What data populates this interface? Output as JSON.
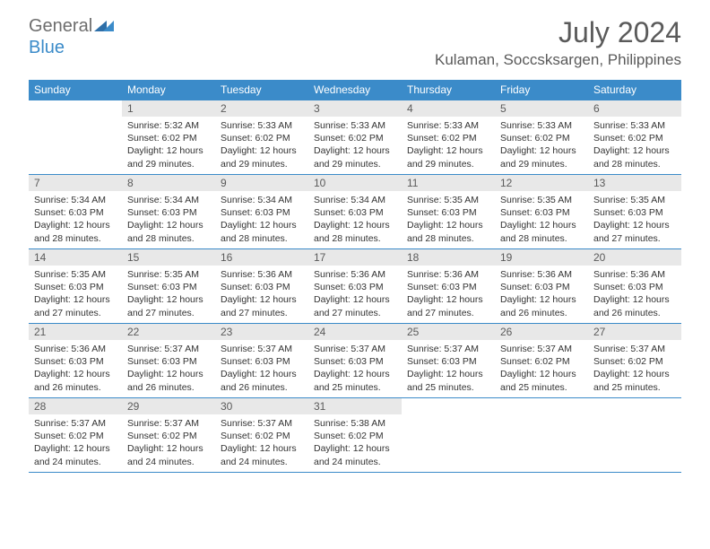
{
  "logo": {
    "text_general": "General",
    "text_blue": "Blue",
    "color_general": "#6d6d6d",
    "color_blue": "#3b8bc9"
  },
  "header": {
    "month_title": "July 2024",
    "location": "Kulaman, Soccsksargen, Philippines",
    "title_color": "#5a5a5a",
    "title_fontsize": 32,
    "location_fontsize": 17
  },
  "colors": {
    "header_bg": "#3b8bc9",
    "header_text": "#ffffff",
    "daynum_bg": "#e8e8e8",
    "daynum_text": "#5a5a5a",
    "border": "#3b8bc9",
    "body_text": "#333333",
    "background": "#ffffff"
  },
  "day_headers": [
    "Sunday",
    "Monday",
    "Tuesday",
    "Wednesday",
    "Thursday",
    "Friday",
    "Saturday"
  ],
  "weeks": [
    [
      {
        "num": "",
        "empty": true
      },
      {
        "num": "1",
        "sunrise": "Sunrise: 5:32 AM",
        "sunset": "Sunset: 6:02 PM",
        "daylight": "Daylight: 12 hours and 29 minutes."
      },
      {
        "num": "2",
        "sunrise": "Sunrise: 5:33 AM",
        "sunset": "Sunset: 6:02 PM",
        "daylight": "Daylight: 12 hours and 29 minutes."
      },
      {
        "num": "3",
        "sunrise": "Sunrise: 5:33 AM",
        "sunset": "Sunset: 6:02 PM",
        "daylight": "Daylight: 12 hours and 29 minutes."
      },
      {
        "num": "4",
        "sunrise": "Sunrise: 5:33 AM",
        "sunset": "Sunset: 6:02 PM",
        "daylight": "Daylight: 12 hours and 29 minutes."
      },
      {
        "num": "5",
        "sunrise": "Sunrise: 5:33 AM",
        "sunset": "Sunset: 6:02 PM",
        "daylight": "Daylight: 12 hours and 29 minutes."
      },
      {
        "num": "6",
        "sunrise": "Sunrise: 5:33 AM",
        "sunset": "Sunset: 6:02 PM",
        "daylight": "Daylight: 12 hours and 28 minutes."
      }
    ],
    [
      {
        "num": "7",
        "sunrise": "Sunrise: 5:34 AM",
        "sunset": "Sunset: 6:03 PM",
        "daylight": "Daylight: 12 hours and 28 minutes."
      },
      {
        "num": "8",
        "sunrise": "Sunrise: 5:34 AM",
        "sunset": "Sunset: 6:03 PM",
        "daylight": "Daylight: 12 hours and 28 minutes."
      },
      {
        "num": "9",
        "sunrise": "Sunrise: 5:34 AM",
        "sunset": "Sunset: 6:03 PM",
        "daylight": "Daylight: 12 hours and 28 minutes."
      },
      {
        "num": "10",
        "sunrise": "Sunrise: 5:34 AM",
        "sunset": "Sunset: 6:03 PM",
        "daylight": "Daylight: 12 hours and 28 minutes."
      },
      {
        "num": "11",
        "sunrise": "Sunrise: 5:35 AM",
        "sunset": "Sunset: 6:03 PM",
        "daylight": "Daylight: 12 hours and 28 minutes."
      },
      {
        "num": "12",
        "sunrise": "Sunrise: 5:35 AM",
        "sunset": "Sunset: 6:03 PM",
        "daylight": "Daylight: 12 hours and 28 minutes."
      },
      {
        "num": "13",
        "sunrise": "Sunrise: 5:35 AM",
        "sunset": "Sunset: 6:03 PM",
        "daylight": "Daylight: 12 hours and 27 minutes."
      }
    ],
    [
      {
        "num": "14",
        "sunrise": "Sunrise: 5:35 AM",
        "sunset": "Sunset: 6:03 PM",
        "daylight": "Daylight: 12 hours and 27 minutes."
      },
      {
        "num": "15",
        "sunrise": "Sunrise: 5:35 AM",
        "sunset": "Sunset: 6:03 PM",
        "daylight": "Daylight: 12 hours and 27 minutes."
      },
      {
        "num": "16",
        "sunrise": "Sunrise: 5:36 AM",
        "sunset": "Sunset: 6:03 PM",
        "daylight": "Daylight: 12 hours and 27 minutes."
      },
      {
        "num": "17",
        "sunrise": "Sunrise: 5:36 AM",
        "sunset": "Sunset: 6:03 PM",
        "daylight": "Daylight: 12 hours and 27 minutes."
      },
      {
        "num": "18",
        "sunrise": "Sunrise: 5:36 AM",
        "sunset": "Sunset: 6:03 PM",
        "daylight": "Daylight: 12 hours and 27 minutes."
      },
      {
        "num": "19",
        "sunrise": "Sunrise: 5:36 AM",
        "sunset": "Sunset: 6:03 PM",
        "daylight": "Daylight: 12 hours and 26 minutes."
      },
      {
        "num": "20",
        "sunrise": "Sunrise: 5:36 AM",
        "sunset": "Sunset: 6:03 PM",
        "daylight": "Daylight: 12 hours and 26 minutes."
      }
    ],
    [
      {
        "num": "21",
        "sunrise": "Sunrise: 5:36 AM",
        "sunset": "Sunset: 6:03 PM",
        "daylight": "Daylight: 12 hours and 26 minutes."
      },
      {
        "num": "22",
        "sunrise": "Sunrise: 5:37 AM",
        "sunset": "Sunset: 6:03 PM",
        "daylight": "Daylight: 12 hours and 26 minutes."
      },
      {
        "num": "23",
        "sunrise": "Sunrise: 5:37 AM",
        "sunset": "Sunset: 6:03 PM",
        "daylight": "Daylight: 12 hours and 26 minutes."
      },
      {
        "num": "24",
        "sunrise": "Sunrise: 5:37 AM",
        "sunset": "Sunset: 6:03 PM",
        "daylight": "Daylight: 12 hours and 25 minutes."
      },
      {
        "num": "25",
        "sunrise": "Sunrise: 5:37 AM",
        "sunset": "Sunset: 6:03 PM",
        "daylight": "Daylight: 12 hours and 25 minutes."
      },
      {
        "num": "26",
        "sunrise": "Sunrise: 5:37 AM",
        "sunset": "Sunset: 6:02 PM",
        "daylight": "Daylight: 12 hours and 25 minutes."
      },
      {
        "num": "27",
        "sunrise": "Sunrise: 5:37 AM",
        "sunset": "Sunset: 6:02 PM",
        "daylight": "Daylight: 12 hours and 25 minutes."
      }
    ],
    [
      {
        "num": "28",
        "sunrise": "Sunrise: 5:37 AM",
        "sunset": "Sunset: 6:02 PM",
        "daylight": "Daylight: 12 hours and 24 minutes."
      },
      {
        "num": "29",
        "sunrise": "Sunrise: 5:37 AM",
        "sunset": "Sunset: 6:02 PM",
        "daylight": "Daylight: 12 hours and 24 minutes."
      },
      {
        "num": "30",
        "sunrise": "Sunrise: 5:37 AM",
        "sunset": "Sunset: 6:02 PM",
        "daylight": "Daylight: 12 hours and 24 minutes."
      },
      {
        "num": "31",
        "sunrise": "Sunrise: 5:38 AM",
        "sunset": "Sunset: 6:02 PM",
        "daylight": "Daylight: 12 hours and 24 minutes."
      },
      {
        "num": "",
        "empty": true
      },
      {
        "num": "",
        "empty": true
      },
      {
        "num": "",
        "empty": true
      }
    ]
  ]
}
